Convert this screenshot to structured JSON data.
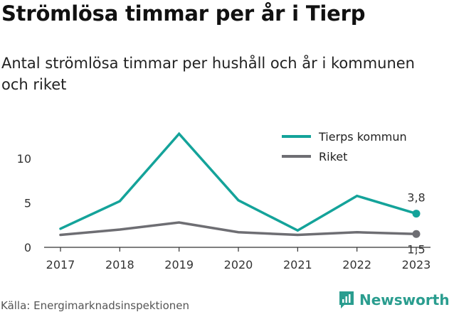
{
  "header": {
    "title": "Strömlösa timmar per år i Tierp",
    "subtitle": "Antal strömlösa timmar per hushåll och år i kommunen och riket"
  },
  "footer": {
    "source": "Källa: Energimarknadsinspektionen",
    "logo_text": "Newsworthy",
    "logo_icon": "newsworthy-chart-logo-icon"
  },
  "chart_data": {
    "type": "line",
    "x": [
      "2017",
      "2018",
      "2019",
      "2020",
      "2021",
      "2022",
      "2023"
    ],
    "series": [
      {
        "name": "Tierps kommun",
        "color": "#14a39a",
        "values": [
          2.1,
          5.2,
          12.8,
          5.3,
          1.9,
          5.8,
          3.8
        ],
        "end_label": "3,8"
      },
      {
        "name": "Riket",
        "color": "#6e6e73",
        "values": [
          1.4,
          2.0,
          2.8,
          1.7,
          1.4,
          1.7,
          1.5
        ],
        "end_label": "1,5"
      }
    ],
    "yticks": [
      {
        "value": 0,
        "label": "0"
      },
      {
        "value": 5,
        "label": "5"
      },
      {
        "value": 10,
        "label": "10"
      }
    ],
    "ylim": [
      0,
      14.5
    ],
    "grid": false,
    "legend": "top-right"
  }
}
